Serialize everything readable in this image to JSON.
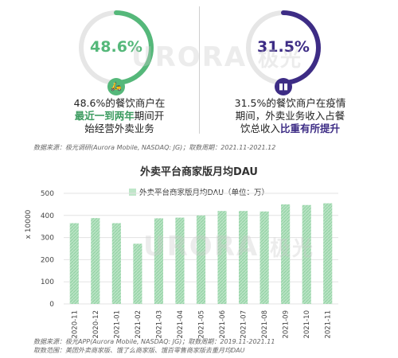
{
  "stats": [
    {
      "value": "48.6%",
      "color": "#55b87a",
      "icon": "scooter-icon",
      "line1": "48.6%的餐饮商户在",
      "line2_hl": "最近一到两年",
      "line2_rest": "期间开",
      "line3": "始经营外卖业务"
    },
    {
      "value": "31.5%",
      "color": "#3d2c85",
      "icon": "chart-bars-icon",
      "line1": "31.5%的餐饮商户在疫情",
      "line2": "期间，外卖业务收入占餐",
      "line3_pre": "饮总收入",
      "line3_hl": "比重有所提升"
    }
  ],
  "source_top": "数据来源：极光调研(Aurora Mobile, NASDAQ: JG)；取数周期：2021.11-2021.12",
  "watermark": {
    "brand": "URORA",
    "cn": "极光"
  },
  "chart_data": {
    "type": "bar",
    "title": "外卖平台商家版月均DAU",
    "legend": "外卖平台商家版月均DAU（单位：万）",
    "ylabel": "x 10000",
    "categories": [
      "2020-11",
      "2020-12",
      "2021-01",
      "2021-02",
      "2021-03",
      "2021-04",
      "2021-05",
      "2021-06",
      "2021-07",
      "2021-08",
      "2021-09",
      "2021-10",
      "2021-11"
    ],
    "values": [
      365,
      388,
      365,
      272,
      387,
      390,
      400,
      420,
      420,
      418,
      450,
      447,
      455
    ],
    "yticks": [
      0,
      100,
      200,
      300,
      400,
      500
    ],
    "ylim": [
      0,
      500
    ],
    "bar_color": "#a8dbb5",
    "grid": true
  },
  "source_bottom_1": "数据来源：极光APP(Aurora Mobile, NASDAQ: JG)；取数周期：2019.11-2021.11",
  "source_bottom_2": "取数范围：美团外卖商家版、饿了么商家版、饿百零售商家版去重月均DAU"
}
